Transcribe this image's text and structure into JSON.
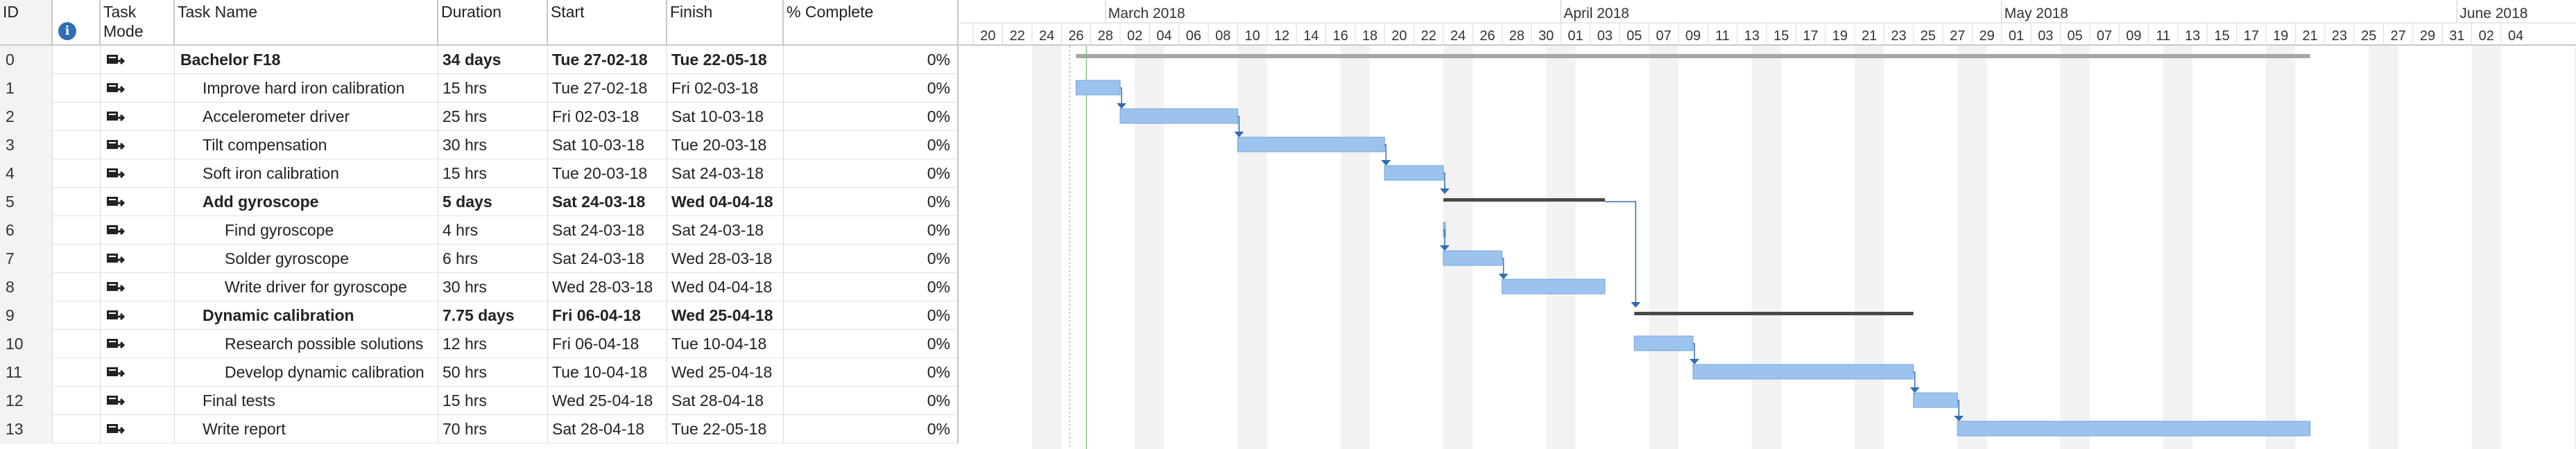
{
  "table": {
    "headers": {
      "id": "ID",
      "info_icon": "info-icon",
      "mode": "Task Mode",
      "name": "Task Name",
      "duration": "Duration",
      "start": "Start",
      "finish": "Finish",
      "pct": "% Complete"
    },
    "rows": [
      {
        "id": "0",
        "name": "Bachelor F18",
        "duration": "34 days",
        "start": "Tue 27-02-18",
        "finish": "Tue 22-05-18",
        "pct": "0%",
        "bold": true,
        "indent": 0
      },
      {
        "id": "1",
        "name": "Improve hard iron calibration",
        "duration": "15 hrs",
        "start": "Tue 27-02-18",
        "finish": "Fri 02-03-18",
        "pct": "0%",
        "bold": false,
        "indent": 1
      },
      {
        "id": "2",
        "name": "Accelerometer driver",
        "duration": "25 hrs",
        "start": "Fri 02-03-18",
        "finish": "Sat 10-03-18",
        "pct": "0%",
        "bold": false,
        "indent": 1
      },
      {
        "id": "3",
        "name": "Tilt compensation",
        "duration": "30 hrs",
        "start": "Sat 10-03-18",
        "finish": "Tue 20-03-18",
        "pct": "0%",
        "bold": false,
        "indent": 1
      },
      {
        "id": "4",
        "name": "Soft iron calibration",
        "duration": "15 hrs",
        "start": "Tue 20-03-18",
        "finish": "Sat 24-03-18",
        "pct": "0%",
        "bold": false,
        "indent": 1
      },
      {
        "id": "5",
        "name": "Add gyroscope",
        "duration": "5 days",
        "start": "Sat 24-03-18",
        "finish": "Wed 04-04-18",
        "pct": "0%",
        "bold": true,
        "indent": 1
      },
      {
        "id": "6",
        "name": "Find gyroscope",
        "duration": "4 hrs",
        "start": "Sat 24-03-18",
        "finish": "Sat 24-03-18",
        "pct": "0%",
        "bold": false,
        "indent": 2
      },
      {
        "id": "7",
        "name": "Solder gyroscope",
        "duration": "6 hrs",
        "start": "Sat 24-03-18",
        "finish": "Wed 28-03-18",
        "pct": "0%",
        "bold": false,
        "indent": 2
      },
      {
        "id": "8",
        "name": "Write driver for gyroscope",
        "duration": "30 hrs",
        "start": "Wed 28-03-18",
        "finish": "Wed 04-04-18",
        "pct": "0%",
        "bold": false,
        "indent": 2
      },
      {
        "id": "9",
        "name": "Dynamic calibration",
        "duration": "7.75 days",
        "start": "Fri 06-04-18",
        "finish": "Wed 25-04-18",
        "pct": "0%",
        "bold": true,
        "indent": 1
      },
      {
        "id": "10",
        "name": "Research possible solutions",
        "duration": "12 hrs",
        "start": "Fri 06-04-18",
        "finish": "Tue 10-04-18",
        "pct": "0%",
        "bold": false,
        "indent": 2
      },
      {
        "id": "11",
        "name": "Develop dynamic calibration",
        "duration": "50 hrs",
        "start": "Tue 10-04-18",
        "finish": "Wed 25-04-18",
        "pct": "0%",
        "bold": false,
        "indent": 2
      },
      {
        "id": "12",
        "name": "Final tests",
        "duration": "15 hrs",
        "start": "Wed 25-04-18",
        "finish": "Sat 28-04-18",
        "pct": "0%",
        "bold": false,
        "indent": 1
      },
      {
        "id": "13",
        "name": "Write report",
        "duration": "70 hrs",
        "start": "Sat 28-04-18",
        "finish": "Tue 22-05-18",
        "pct": "0%",
        "bold": false,
        "indent": 1
      }
    ]
  },
  "timescale": {
    "months": [
      "March 2018",
      "April 2018",
      "May 2018",
      "June 2018"
    ],
    "days": [
      "20",
      "22",
      "24",
      "26",
      "28",
      "02",
      "04",
      "06",
      "08",
      "10",
      "12",
      "14",
      "16",
      "18",
      "20",
      "22",
      "24",
      "26",
      "28",
      "30",
      "01",
      "03",
      "05",
      "07",
      "09",
      "11",
      "13",
      "15",
      "17",
      "19",
      "21",
      "23",
      "25",
      "27",
      "29",
      "01",
      "03",
      "05",
      "07",
      "09",
      "11",
      "13",
      "15",
      "17",
      "19",
      "21",
      "23",
      "25",
      "27",
      "29",
      "31",
      "02",
      "04"
    ]
  },
  "gantt": {
    "bars": [
      {
        "task": "0",
        "type": "summary-project",
        "start": "2018-02-27",
        "finish": "2018-05-22"
      },
      {
        "task": "1",
        "type": "task",
        "start": "2018-02-27",
        "finish": "2018-03-02"
      },
      {
        "task": "2",
        "type": "task",
        "start": "2018-03-02",
        "finish": "2018-03-10"
      },
      {
        "task": "3",
        "type": "task",
        "start": "2018-03-10",
        "finish": "2018-03-20"
      },
      {
        "task": "4",
        "type": "task",
        "start": "2018-03-20",
        "finish": "2018-03-24"
      },
      {
        "task": "5",
        "type": "summary",
        "start": "2018-03-24",
        "finish": "2018-04-04"
      },
      {
        "task": "6",
        "type": "task",
        "start": "2018-03-24",
        "finish": "2018-03-24"
      },
      {
        "task": "7",
        "type": "task",
        "start": "2018-03-24",
        "finish": "2018-03-28"
      },
      {
        "task": "8",
        "type": "task",
        "start": "2018-03-28",
        "finish": "2018-04-04"
      },
      {
        "task": "9",
        "type": "summary",
        "start": "2018-04-06",
        "finish": "2018-04-25"
      },
      {
        "task": "10",
        "type": "task",
        "start": "2018-04-06",
        "finish": "2018-04-10"
      },
      {
        "task": "11",
        "type": "task",
        "start": "2018-04-10",
        "finish": "2018-04-25"
      },
      {
        "task": "12",
        "type": "task",
        "start": "2018-04-25",
        "finish": "2018-04-28"
      },
      {
        "task": "13",
        "type": "task",
        "start": "2018-04-28",
        "finish": "2018-05-22"
      }
    ],
    "links": [
      {
        "from": "1",
        "to": "2"
      },
      {
        "from": "2",
        "to": "3"
      },
      {
        "from": "3",
        "to": "4"
      },
      {
        "from": "4",
        "to": "5"
      },
      {
        "from": "6",
        "to": "7"
      },
      {
        "from": "7",
        "to": "8"
      },
      {
        "from": "5",
        "to": "9"
      },
      {
        "from": "10",
        "to": "11"
      },
      {
        "from": "11",
        "to": "12"
      },
      {
        "from": "12",
        "to": "13"
      }
    ],
    "colors": {
      "task_bar": "#9cc3ee",
      "task_bar_border": "#6fa3dd",
      "summary_bar": "#4a4a4a",
      "project_bar": "#a6a6a6",
      "link": "#2f6db5",
      "weekend_shade": "#f2f2f2",
      "today_line": "#4caf50"
    }
  }
}
